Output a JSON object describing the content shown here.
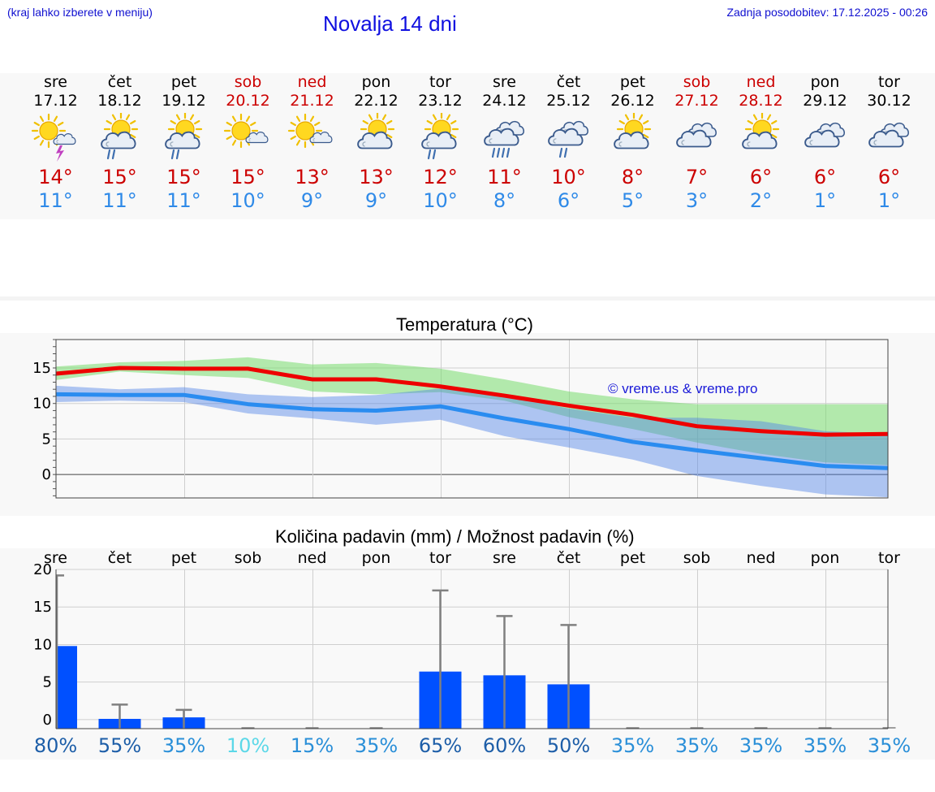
{
  "header": {
    "menu_note": "(kraj lahko izberete v meniju)",
    "title": "Novalja 14 dni",
    "updated": "Zadnja posodobitev: 17.12.2025 - 00:26"
  },
  "colors": {
    "tmax": "#cc0000",
    "tmin": "#2f8ae8",
    "title": "#1010e0",
    "bar": "#0050ff"
  },
  "days": [
    {
      "name": "sre",
      "date": "17.12",
      "icon": "sun-cloud-thunder-icon",
      "tmax": "14°",
      "tmin": "11°",
      "weekend": false
    },
    {
      "name": "čet",
      "date": "18.12",
      "icon": "sun-cloud-rain-icon",
      "tmax": "15°",
      "tmin": "11°",
      "weekend": false
    },
    {
      "name": "pet",
      "date": "19.12",
      "icon": "sun-cloud-rain-icon",
      "tmax": "15°",
      "tmin": "11°",
      "weekend": false
    },
    {
      "name": "sob",
      "date": "20.12",
      "icon": "sun-small-cloud-icon",
      "tmax": "15°",
      "tmin": "10°",
      "weekend": true
    },
    {
      "name": "ned",
      "date": "21.12",
      "icon": "sun-small-cloud-icon",
      "tmax": "13°",
      "tmin": "9°",
      "weekend": true
    },
    {
      "name": "pon",
      "date": "22.12",
      "icon": "sun-cloud-icon",
      "tmax": "13°",
      "tmin": "9°",
      "weekend": false
    },
    {
      "name": "tor",
      "date": "23.12",
      "icon": "sun-cloud-rain-icon",
      "tmax": "12°",
      "tmin": "10°",
      "weekend": false
    },
    {
      "name": "sre",
      "date": "24.12",
      "icon": "cloud-heavy-rain-icon",
      "tmax": "11°",
      "tmin": "8°",
      "weekend": false
    },
    {
      "name": "čet",
      "date": "25.12",
      "icon": "cloud-rain-icon",
      "tmax": "10°",
      "tmin": "6°",
      "weekend": false
    },
    {
      "name": "pet",
      "date": "26.12",
      "icon": "sun-cloud-icon",
      "tmax": "8°",
      "tmin": "5°",
      "weekend": false
    },
    {
      "name": "sob",
      "date": "27.12",
      "icon": "cloud-icon",
      "tmax": "7°",
      "tmin": "3°",
      "weekend": true
    },
    {
      "name": "ned",
      "date": "28.12",
      "icon": "sun-cloud-icon",
      "tmax": "6°",
      "tmin": "2°",
      "weekend": true
    },
    {
      "name": "pon",
      "date": "29.12",
      "icon": "cloud-icon",
      "tmax": "6°",
      "tmin": "1°",
      "weekend": false
    },
    {
      "name": "tor",
      "date": "30.12",
      "icon": "cloud-icon",
      "tmax": "6°",
      "tmin": "1°",
      "weekend": false
    }
  ],
  "chart_data": [
    {
      "type": "line",
      "title": "Temperatura (°C)",
      "watermark": "© vreme.us & vreme.pro",
      "ylim": [
        -3.3,
        19
      ],
      "yticks": [
        0,
        5,
        10,
        15
      ],
      "x": [
        0,
        1,
        2,
        3,
        4,
        5,
        6,
        7,
        8,
        9,
        10,
        11,
        12,
        13
      ],
      "series": [
        {
          "name": "max",
          "color": "#ee0000",
          "values": [
            14.2,
            15.0,
            14.9,
            14.9,
            13.4,
            13.4,
            12.4,
            11.1,
            9.7,
            8.4,
            6.8,
            6.1,
            5.6,
            5.7
          ]
        },
        {
          "name": "min",
          "color": "#2a8cf0",
          "values": [
            11.3,
            11.2,
            11.2,
            9.9,
            9.2,
            9.0,
            9.6,
            7.9,
            6.4,
            4.6,
            3.4,
            2.3,
            1.2,
            0.9
          ]
        }
      ],
      "bands": [
        {
          "name": "max-range",
          "color": "rgba(120,220,110,0.55)",
          "upper": [
            15.2,
            15.8,
            16.0,
            16.5,
            15.5,
            15.7,
            14.9,
            13.4,
            11.7,
            10.6,
            9.9,
            9.9,
            9.9,
            9.9
          ],
          "lower": [
            13.3,
            14.5,
            14.0,
            13.6,
            11.7,
            11.3,
            11.6,
            10.4,
            8.1,
            6.4,
            4.5,
            2.9,
            1.7,
            1.3
          ]
        },
        {
          "name": "min-range",
          "color": "rgba(80,130,230,0.45)",
          "upper": [
            12.5,
            12.0,
            12.3,
            11.3,
            10.9,
            11.2,
            12.1,
            11.1,
            9.3,
            8.0,
            8.0,
            7.5,
            6.1,
            5.7
          ],
          "lower": [
            10.2,
            10.4,
            10.2,
            8.6,
            7.9,
            7.0,
            7.7,
            5.4,
            3.8,
            2.1,
            -0.2,
            -1.6,
            -2.8,
            -3.2
          ]
        }
      ]
    },
    {
      "type": "bar",
      "title": "Količina padavin (mm) / Možnost padavin (%)",
      "categories": [
        "sre",
        "čet",
        "pet",
        "sob",
        "ned",
        "pon",
        "tor",
        "sre",
        "čet",
        "pet",
        "sob",
        "ned",
        "pon",
        "tor"
      ],
      "ylim": [
        -1.2,
        20
      ],
      "yticks": [
        0,
        5,
        10,
        15,
        20
      ],
      "values": [
        9.8,
        0.1,
        0.3,
        0,
        0,
        0,
        6.4,
        5.9,
        4.7,
        0,
        0,
        0,
        0,
        0
      ],
      "error_high": [
        19.2,
        2.0,
        1.3,
        0,
        0,
        0,
        17.2,
        13.8,
        12.6,
        0,
        0,
        0,
        0,
        0
      ],
      "probabilities": [
        "80%",
        "55%",
        "35%",
        "10%",
        "15%",
        "35%",
        "65%",
        "60%",
        "50%",
        "35%",
        "35%",
        "35%",
        "35%",
        "35%"
      ],
      "probability_colors": [
        "#1d5ea8",
        "#1d5ea8",
        "#2a8fd8",
        "#5cd8e8",
        "#2a8fd8",
        "#2a8fd8",
        "#1d5ea8",
        "#1d5ea8",
        "#1d5ea8",
        "#2a8fd8",
        "#2a8fd8",
        "#2a8fd8",
        "#2a8fd8",
        "#2a8fd8"
      ]
    }
  ]
}
